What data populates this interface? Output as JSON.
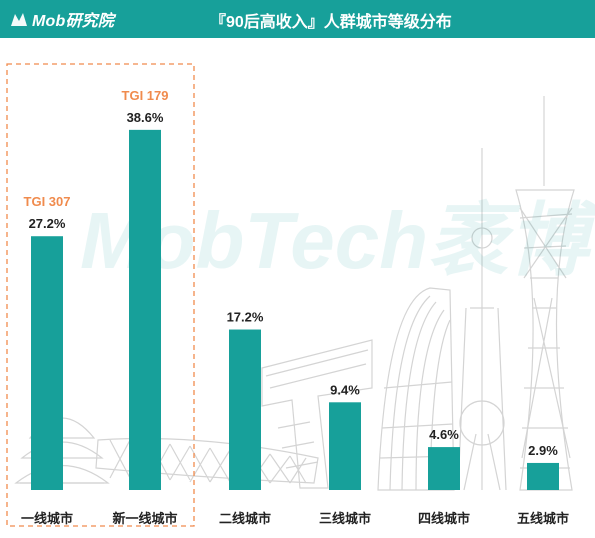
{
  "header": {
    "logo_text": "Mob研究院",
    "title": "『90后高收入』人群城市等级分布"
  },
  "watermark": "MobTech袤博",
  "colors": {
    "header_bg": "#17a09a",
    "bar": "#17a09a",
    "tgi": "#f08b4d",
    "highlight_border": "#f08b4d"
  },
  "chart_data": {
    "type": "bar",
    "title": "『90后高收入』人群城市等级分布",
    "categories": [
      "一线城市",
      "新一线城市",
      "二线城市",
      "三线城市",
      "四线城市",
      "五线城市"
    ],
    "values": [
      27.2,
      38.6,
      17.2,
      9.4,
      4.6,
      2.9
    ],
    "value_labels": [
      "27.2%",
      "38.6%",
      "17.2%",
      "9.4%",
      "4.6%",
      "2.9%"
    ],
    "unit": "%",
    "annotations": [
      {
        "category": "一线城市",
        "text": "TGI 307"
      },
      {
        "category": "新一线城市",
        "text": "TGI 179"
      }
    ],
    "highlighted_categories": [
      "一线城市",
      "新一线城市"
    ],
    "ylim": [
      0,
      40
    ],
    "grid": false,
    "legend": "none"
  }
}
